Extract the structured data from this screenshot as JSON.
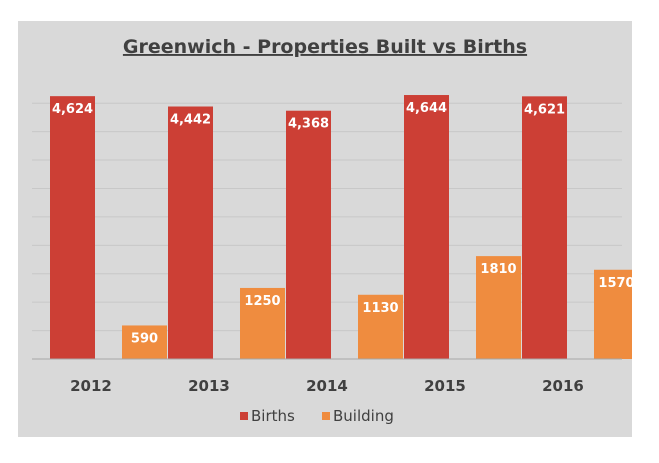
{
  "chart_data": {
    "type": "bar",
    "title": "Greenwich - Properties Built vs Births",
    "categories": [
      "2012",
      "2013",
      "2014",
      "2015",
      "2016"
    ],
    "series": [
      {
        "name": "Births",
        "color": "#cc3f35",
        "values": [
          4624,
          4442,
          4368,
          4644,
          4621
        ],
        "labels": [
          "4,624",
          "4,442",
          "4,368",
          "4,644",
          "4,621"
        ]
      },
      {
        "name": "Building",
        "color": "#ef8c3f",
        "values": [
          590,
          1250,
          1130,
          1810,
          1570
        ],
        "labels": [
          "590",
          "1250",
          "1130",
          "1810",
          "1570"
        ]
      }
    ],
    "ylim": [
      0,
      4750
    ],
    "grid": true,
    "legend": "bottom",
    "xlabel": "",
    "ylabel": ""
  }
}
